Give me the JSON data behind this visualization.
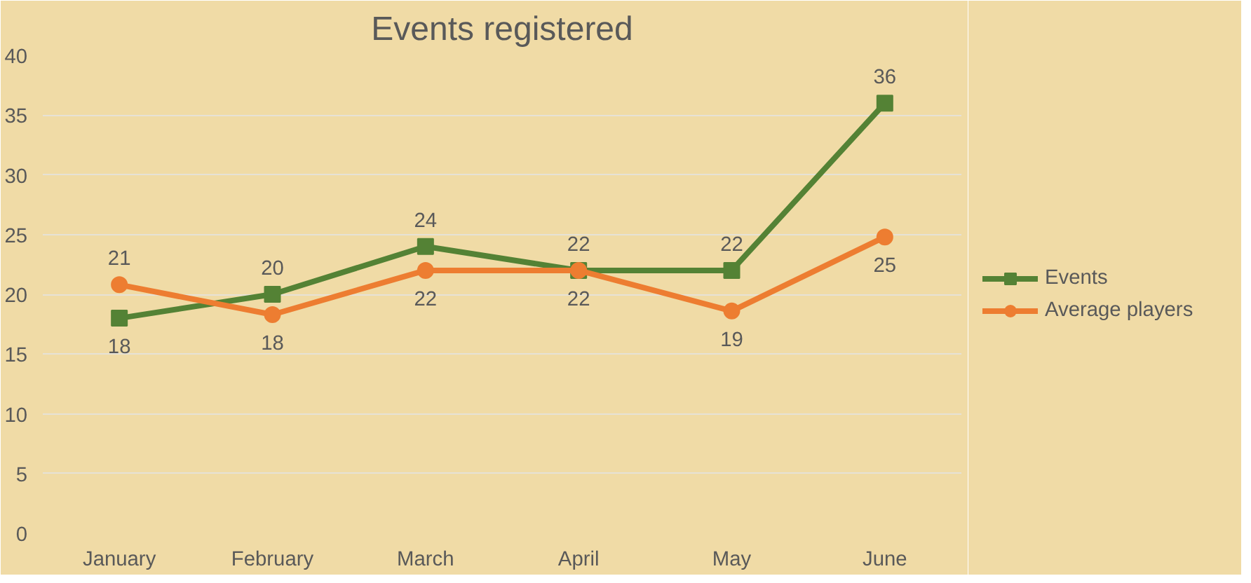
{
  "chart_data": {
    "type": "line",
    "title": "Events registered",
    "categories": [
      "January",
      "February",
      "March",
      "April",
      "May",
      "June"
    ],
    "ylim": [
      0,
      40
    ],
    "yticks": [
      0,
      5,
      10,
      15,
      20,
      25,
      30,
      35,
      40
    ],
    "grid": "y",
    "legend": "right",
    "line_style": "solid",
    "series": [
      {
        "name": "Events",
        "color": "#548235",
        "marker": "square",
        "values": [
          18,
          20,
          24,
          22,
          22,
          36
        ],
        "value_labels": [
          "18",
          "20",
          "24",
          "22",
          "22",
          "36"
        ]
      },
      {
        "name": "Average players",
        "color": "#ed7d31",
        "marker": "circle",
        "values": [
          20.8,
          18.3,
          22,
          22,
          18.6,
          24.8
        ],
        "value_labels": [
          "21",
          "18",
          "22",
          "22",
          "19",
          "25"
        ]
      }
    ]
  }
}
